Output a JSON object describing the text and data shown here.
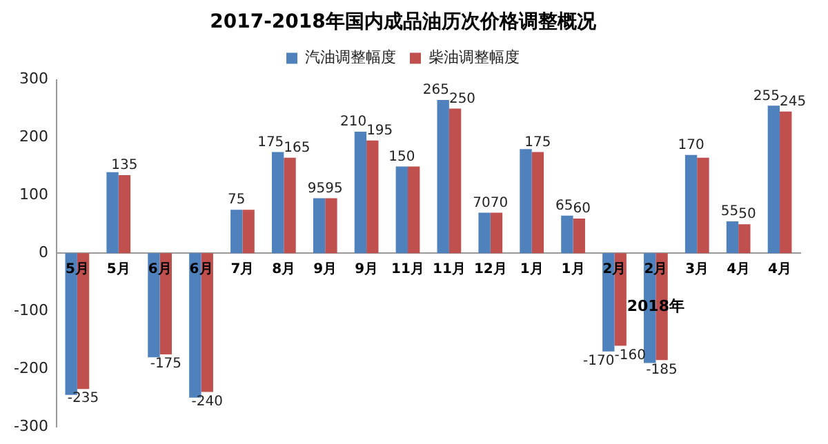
{
  "chart_data": {
    "type": "bar",
    "title": "2017-2018年国内成品油历次价格调整概况",
    "categories": [
      "5月",
      "5月",
      "6月",
      "6月",
      "7月",
      "8月",
      "9月",
      "9月",
      "11月",
      "11月",
      "12月",
      "1月",
      "1月",
      "2月",
      "2月",
      "3月",
      "4月",
      "4月"
    ],
    "series": [
      {
        "name": "汽油调整幅度",
        "color": "#4f81bd",
        "values": [
          -245,
          140,
          -180,
          -250,
          75,
          175,
          95,
          210,
          150,
          265,
          70,
          180,
          65,
          -170,
          -190,
          170,
          55,
          255
        ],
        "value_labels": [
          null,
          null,
          null,
          null,
          "75",
          "175",
          "95",
          "210",
          "150",
          "265",
          "70",
          null,
          "65",
          "-170",
          null,
          "170",
          "55",
          "255"
        ]
      },
      {
        "name": "柴油调整幅度",
        "color": "#c0504d",
        "values": [
          -235,
          135,
          -175,
          -240,
          75,
          165,
          95,
          195,
          150,
          250,
          70,
          175,
          60,
          -160,
          -185,
          165,
          50,
          245
        ],
        "value_labels": [
          "-235",
          "135",
          "-175",
          "-240",
          null,
          "165",
          "95",
          "195",
          null,
          "250",
          "70",
          "175",
          "60",
          "-160",
          "-185",
          null,
          "50",
          "245"
        ]
      }
    ],
    "ylim": [
      -300,
      300
    ],
    "yticks": [
      -300,
      -200,
      -100,
      0,
      100,
      200,
      300
    ],
    "grid": false,
    "legend": "top",
    "annotations": [
      "2018年"
    ]
  }
}
